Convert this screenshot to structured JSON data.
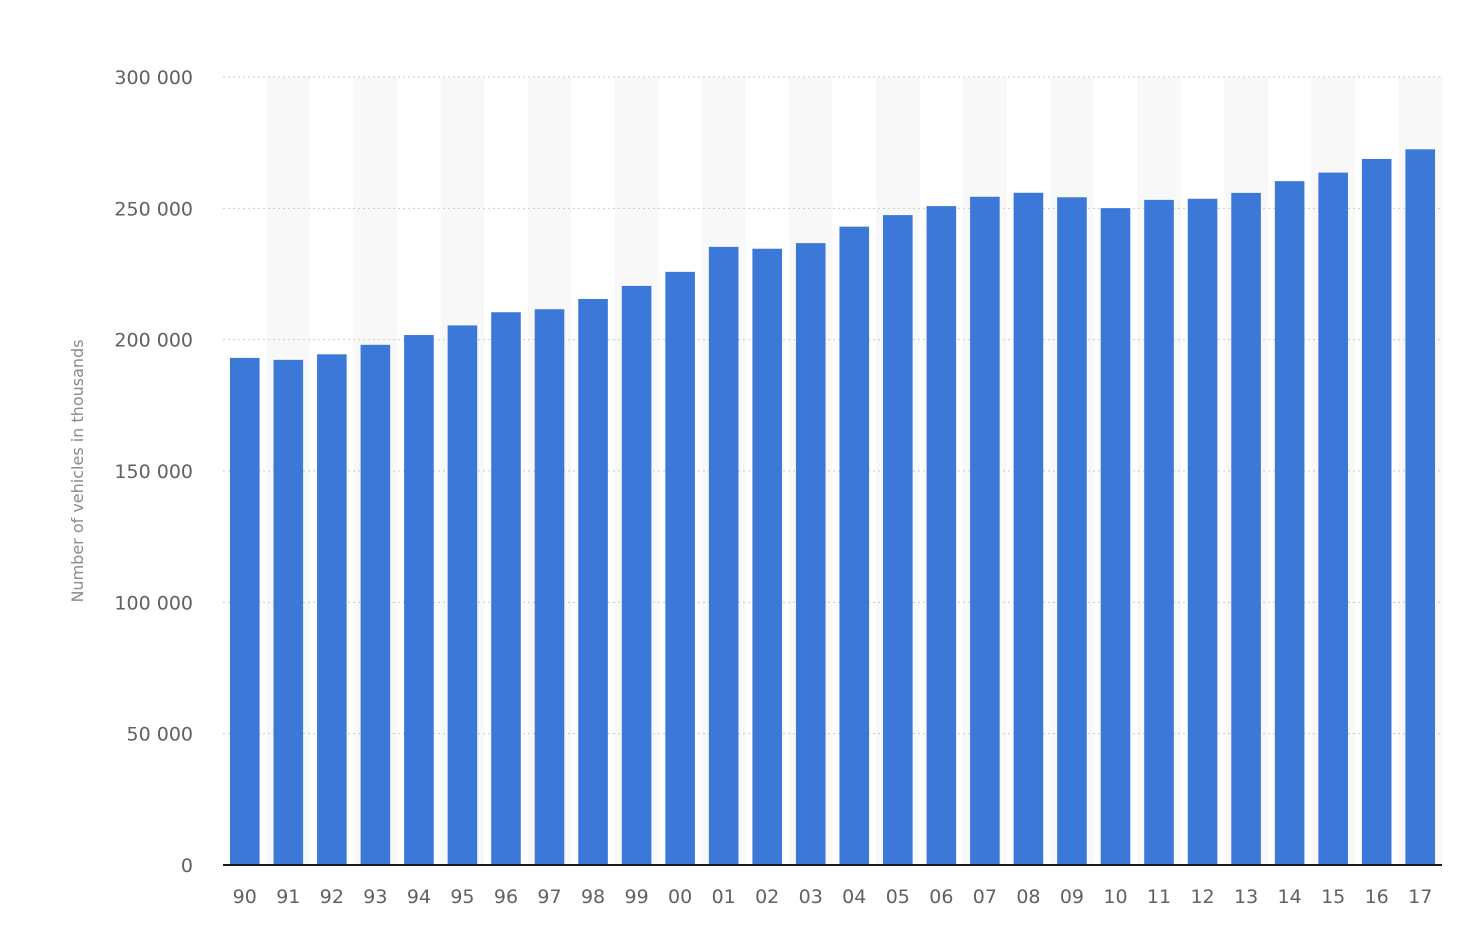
{
  "chart_data": {
    "type": "bar",
    "title": "",
    "xlabel": "",
    "ylabel": "Number of vehicles in thousands",
    "ylim": [
      0,
      300000
    ],
    "yticks": [
      0,
      50000,
      100000,
      150000,
      200000,
      250000,
      300000
    ],
    "ytick_labels": [
      "0",
      "50 000",
      "100 000",
      "150 000",
      "200 000",
      "250 000",
      "300 000"
    ],
    "grid": true,
    "legend": "none",
    "categories": [
      "90",
      "91",
      "92",
      "93",
      "94",
      "95",
      "96",
      "97",
      "98",
      "99",
      "00",
      "01",
      "02",
      "03",
      "04",
      "05",
      "06",
      "07",
      "08",
      "09",
      "10",
      "11",
      "12",
      "13",
      "14",
      "15",
      "16",
      "17"
    ],
    "values": [
      193057,
      192314,
      194427,
      198041,
      201763,
      205427,
      210441,
      211580,
      215497,
      220461,
      225821,
      235331,
      234624,
      236760,
      243023,
      247421,
      250845,
      254403,
      255918,
      254213,
      250070,
      253216,
      253639,
      255876,
      260351,
      263610,
      268799,
      272480
    ],
    "colors": {
      "bar": "#3b78d8",
      "alt_band": "#f8f8f8",
      "grid": "#c8c8c8",
      "axis": "#1a1a1a",
      "tick_text": "#616161",
      "axis_title": "#8a8a8a"
    }
  }
}
